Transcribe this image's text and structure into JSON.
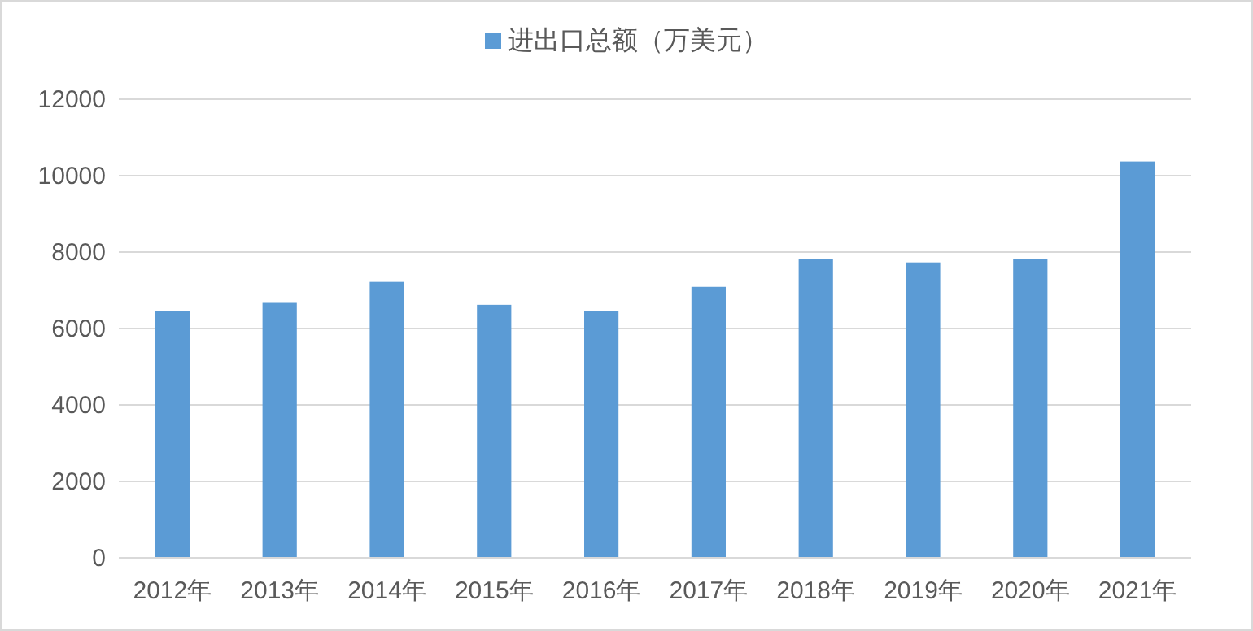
{
  "chart_data": {
    "type": "bar",
    "categories": [
      "2012年",
      "2013年",
      "2014年",
      "2015年",
      "2016年",
      "2017年",
      "2018年",
      "2019年",
      "2020年",
      "2021年"
    ],
    "series": [
      {
        "name": "进出口总额（万美元）",
        "color": "#5b9bd5",
        "values": [
          6450,
          6670,
          7220,
          6620,
          6450,
          7090,
          7820,
          7730,
          7820,
          10370
        ]
      }
    ],
    "ylim": [
      0,
      12000
    ],
    "yticks": [
      0,
      2000,
      4000,
      6000,
      8000,
      10000,
      12000
    ],
    "grid": "y",
    "legend": "top"
  }
}
